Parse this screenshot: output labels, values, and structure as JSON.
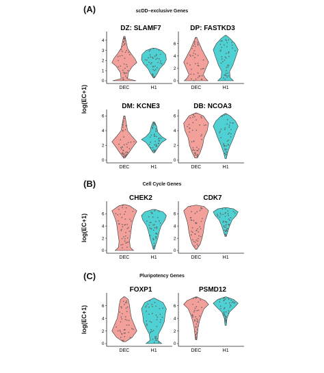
{
  "sections": [
    {
      "label": "(A)",
      "title": "scDD–exclusive Genes",
      "ylabel": "log(EC+1)"
    },
    {
      "label": "(B)",
      "title": "Cell Cycle Genes",
      "ylabel": "log(EC+1)"
    },
    {
      "label": "(C)",
      "title": "Pluripotency Genes",
      "ylabel": "log(EC+1)"
    }
  ],
  "colors": {
    "DEC": "#f4a09a",
    "H1": "#4fd1d3",
    "outline": "#333333",
    "points": "#5a5a5a"
  },
  "chart_data": [
    {
      "type": "violin",
      "title": "DZ: SLAMF7",
      "categories": [
        "DEC",
        "H1"
      ],
      "ylim": [
        0,
        4.6
      ],
      "yticks": [
        0,
        1,
        2,
        3,
        4
      ],
      "series": [
        {
          "name": "DEC",
          "profile": [
            [
              0,
              0.9
            ],
            [
              0.2,
              0.25
            ],
            [
              0.8,
              0.3
            ],
            [
              1.4,
              0.6
            ],
            [
              1.8,
              0.95
            ],
            [
              2.2,
              0.8
            ],
            [
              2.7,
              0.5
            ],
            [
              3.2,
              0.25
            ],
            [
              3.8,
              0.15
            ],
            [
              4.4,
              0.05
            ]
          ]
        },
        {
          "name": "H1",
          "profile": [
            [
              0.3,
              0.05
            ],
            [
              0.7,
              0.25
            ],
            [
              1.2,
              0.45
            ],
            [
              1.7,
              0.8
            ],
            [
              2.1,
              0.95
            ],
            [
              2.6,
              0.9
            ],
            [
              3.0,
              0.6
            ],
            [
              3.2,
              0.15
            ]
          ]
        }
      ]
    },
    {
      "type": "violin",
      "title": "DP: FASTKD3",
      "categories": [
        "DEC",
        "H1"
      ],
      "ylim": [
        0,
        7.5
      ],
      "yticks": [
        0,
        2,
        4,
        6
      ],
      "series": [
        {
          "name": "DEC",
          "profile": [
            [
              0,
              0.9
            ],
            [
              0.4,
              0.7
            ],
            [
              1.0,
              0.55
            ],
            [
              2.0,
              0.75
            ],
            [
              3.0,
              0.95
            ],
            [
              4.0,
              0.7
            ],
            [
              5.0,
              0.45
            ],
            [
              6.0,
              0.25
            ],
            [
              7.0,
              0.05
            ]
          ]
        },
        {
          "name": "H1",
          "profile": [
            [
              0,
              0.6
            ],
            [
              0.5,
              0.35
            ],
            [
              1.5,
              0.3
            ],
            [
              2.5,
              0.55
            ],
            [
              4.0,
              0.8
            ],
            [
              5.0,
              0.95
            ],
            [
              6.0,
              0.7
            ],
            [
              6.8,
              0.35
            ],
            [
              7.3,
              0.05
            ]
          ]
        }
      ]
    },
    {
      "type": "violin",
      "title": "DM: KCNE3",
      "categories": [
        "DEC",
        "H1"
      ],
      "ylim": [
        0,
        6.5
      ],
      "yticks": [
        0,
        2,
        4,
        6
      ],
      "series": [
        {
          "name": "DEC",
          "profile": [
            [
              0.3,
              0.05
            ],
            [
              1.0,
              0.35
            ],
            [
              1.8,
              0.65
            ],
            [
              2.5,
              0.95
            ],
            [
              3.2,
              0.6
            ],
            [
              4.0,
              0.25
            ],
            [
              5.0,
              0.15
            ],
            [
              6.0,
              0.05
            ]
          ]
        },
        {
          "name": "H1",
          "profile": [
            [
              1.0,
              0.05
            ],
            [
              1.8,
              0.35
            ],
            [
              2.4,
              0.6
            ],
            [
              2.8,
              0.95
            ],
            [
              3.2,
              0.6
            ],
            [
              3.8,
              0.3
            ],
            [
              4.6,
              0.2
            ],
            [
              5.2,
              0.05
            ]
          ]
        }
      ]
    },
    {
      "type": "violin",
      "title": "DB: NCOA3",
      "categories": [
        "DEC",
        "H1"
      ],
      "ylim": [
        0,
        6.5
      ],
      "yticks": [
        0,
        2,
        4,
        6
      ],
      "series": [
        {
          "name": "DEC",
          "profile": [
            [
              0.3,
              0.1
            ],
            [
              1.0,
              0.3
            ],
            [
              2.0,
              0.5
            ],
            [
              3.0,
              0.6
            ],
            [
              4.0,
              0.85
            ],
            [
              5.0,
              0.95
            ],
            [
              6.0,
              0.55
            ],
            [
              6.4,
              0.05
            ]
          ]
        },
        {
          "name": "H1",
          "profile": [
            [
              0.2,
              0.05
            ],
            [
              1.0,
              0.15
            ],
            [
              2.0,
              0.35
            ],
            [
              3.0,
              0.6
            ],
            [
              4.0,
              0.8
            ],
            [
              4.6,
              0.95
            ],
            [
              5.3,
              0.75
            ],
            [
              6.0,
              0.35
            ],
            [
              6.3,
              0.05
            ]
          ]
        }
      ]
    },
    {
      "type": "violin",
      "title": "CHEK2",
      "categories": [
        "DEC",
        "H1"
      ],
      "ylim": [
        0,
        7.6
      ],
      "yticks": [
        0,
        2,
        4,
        6
      ],
      "series": [
        {
          "name": "DEC",
          "profile": [
            [
              0,
              0.7
            ],
            [
              0.5,
              0.45
            ],
            [
              1.5,
              0.4
            ],
            [
              3.0,
              0.5
            ],
            [
              4.5,
              0.6
            ],
            [
              5.5,
              0.75
            ],
            [
              6.5,
              0.95
            ],
            [
              7.3,
              0.4
            ],
            [
              7.5,
              0.05
            ]
          ]
        },
        {
          "name": "H1",
          "profile": [
            [
              0.2,
              0.05
            ],
            [
              1.0,
              0.15
            ],
            [
              2.0,
              0.3
            ],
            [
              3.0,
              0.4
            ],
            [
              4.0,
              0.55
            ],
            [
              5.0,
              0.85
            ],
            [
              5.7,
              0.95
            ],
            [
              6.3,
              0.7
            ],
            [
              6.7,
              0.1
            ]
          ]
        }
      ]
    },
    {
      "type": "violin",
      "title": "CDK7",
      "categories": [
        "DEC",
        "H1"
      ],
      "ylim": [
        0,
        7.6
      ],
      "yticks": [
        0,
        2,
        4,
        6
      ],
      "series": [
        {
          "name": "DEC",
          "profile": [
            [
              0.2,
              0.05
            ],
            [
              1.0,
              0.3
            ],
            [
              2.0,
              0.45
            ],
            [
              3.0,
              0.55
            ],
            [
              4.5,
              0.65
            ],
            [
              5.5,
              0.8
            ],
            [
              6.5,
              0.95
            ],
            [
              7.2,
              0.6
            ],
            [
              7.4,
              0.05
            ]
          ]
        },
        {
          "name": "H1",
          "profile": [
            [
              2.3,
              0.05
            ],
            [
              3.0,
              0.15
            ],
            [
              4.0,
              0.3
            ],
            [
              5.0,
              0.5
            ],
            [
              5.7,
              0.8
            ],
            [
              6.3,
              0.95
            ],
            [
              6.8,
              0.6
            ],
            [
              7.0,
              0.1
            ]
          ]
        }
      ]
    },
    {
      "type": "violin",
      "title": "FOXP1",
      "categories": [
        "DEC",
        "H1"
      ],
      "ylim": [
        0,
        7.6
      ],
      "yticks": [
        0,
        2,
        4,
        6
      ],
      "series": [
        {
          "name": "DEC",
          "profile": [
            [
              0.3,
              0.1
            ],
            [
              1.0,
              0.6
            ],
            [
              2.0,
              0.95
            ],
            [
              3.0,
              0.75
            ],
            [
              4.0,
              0.55
            ],
            [
              5.0,
              0.45
            ],
            [
              6.0,
              0.4
            ],
            [
              7.0,
              0.3
            ],
            [
              7.4,
              0.05
            ]
          ]
        },
        {
          "name": "H1",
          "profile": [
            [
              0,
              0.6
            ],
            [
              0.5,
              0.3
            ],
            [
              1.5,
              0.35
            ],
            [
              2.5,
              0.6
            ],
            [
              3.5,
              0.8
            ],
            [
              4.5,
              0.85
            ],
            [
              5.5,
              0.95
            ],
            [
              6.5,
              0.7
            ],
            [
              7.2,
              0.05
            ]
          ]
        }
      ]
    },
    {
      "type": "violin",
      "title": "PSMD12",
      "categories": [
        "DEC",
        "H1"
      ],
      "ylim": [
        0,
        7.6
      ],
      "yticks": [
        0,
        2,
        4,
        6
      ],
      "series": [
        {
          "name": "DEC",
          "profile": [
            [
              0.6,
              0.05
            ],
            [
              1.5,
              0.1
            ],
            [
              2.5,
              0.15
            ],
            [
              3.5,
              0.25
            ],
            [
              4.5,
              0.4
            ],
            [
              5.5,
              0.6
            ],
            [
              6.2,
              0.95
            ],
            [
              6.8,
              0.7
            ],
            [
              7.4,
              0.05
            ]
          ]
        },
        {
          "name": "H1",
          "profile": [
            [
              2.9,
              0.05
            ],
            [
              4.0,
              0.1
            ],
            [
              5.0,
              0.3
            ],
            [
              5.8,
              0.7
            ],
            [
              6.4,
              0.95
            ],
            [
              7.0,
              0.6
            ],
            [
              7.4,
              0.05
            ]
          ]
        }
      ]
    }
  ]
}
